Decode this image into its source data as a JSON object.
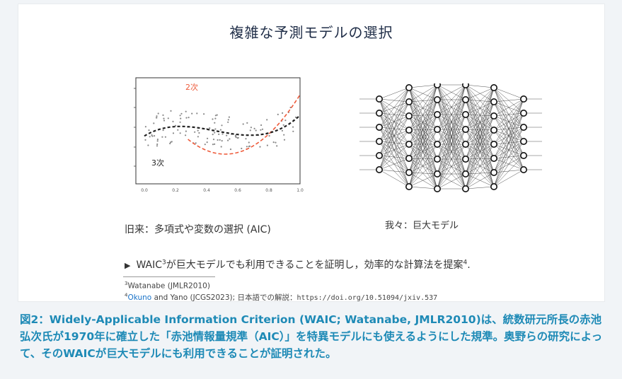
{
  "slide": {
    "title": "複雑な予測モデルの選択",
    "plot": {
      "label_quadratic": "2次",
      "label_cubic": "3次",
      "x_ticks": [
        "0.0",
        "0.2",
        "0.4",
        "0.6",
        "0.8",
        "1.0"
      ],
      "colors": {
        "quadratic": "#ee5a3a",
        "cubic": "#222222",
        "points": "#8a8a8a"
      }
    },
    "caption_left": "旧来：多項式や変数の選択 (AIC)",
    "caption_right": "我々：巨大モデル",
    "bullet": {
      "text_a": "WAIC",
      "sup_a": "3",
      "text_b": "が巨大モデルでも利用できることを証明し，効率的な計算法を提案",
      "sup_b": "4",
      "text_c": "."
    },
    "footnotes": {
      "fn1_mark": "3",
      "fn1_text": "Watanabe (JMLR2010)",
      "fn2_mark": "4",
      "fn2_link": "Okuno",
      "fn2_text": " and Yano (JCGS2023); 日本語での解説：",
      "fn2_url": "https://doi.org/10.51094/jxiv.537"
    }
  },
  "figure_caption": "図2：Widely-Applicable Information Criterion (WAIC; Watanabe, JMLR2010)は、統数研元所長の赤池弘次氏が1970年に確立した「赤池情報量規準（AIC）」を特異モデルにも使えるようにした規準。奥野らの研究によって、そのWAICが巨大モデルにも利用できることが証明された。"
}
